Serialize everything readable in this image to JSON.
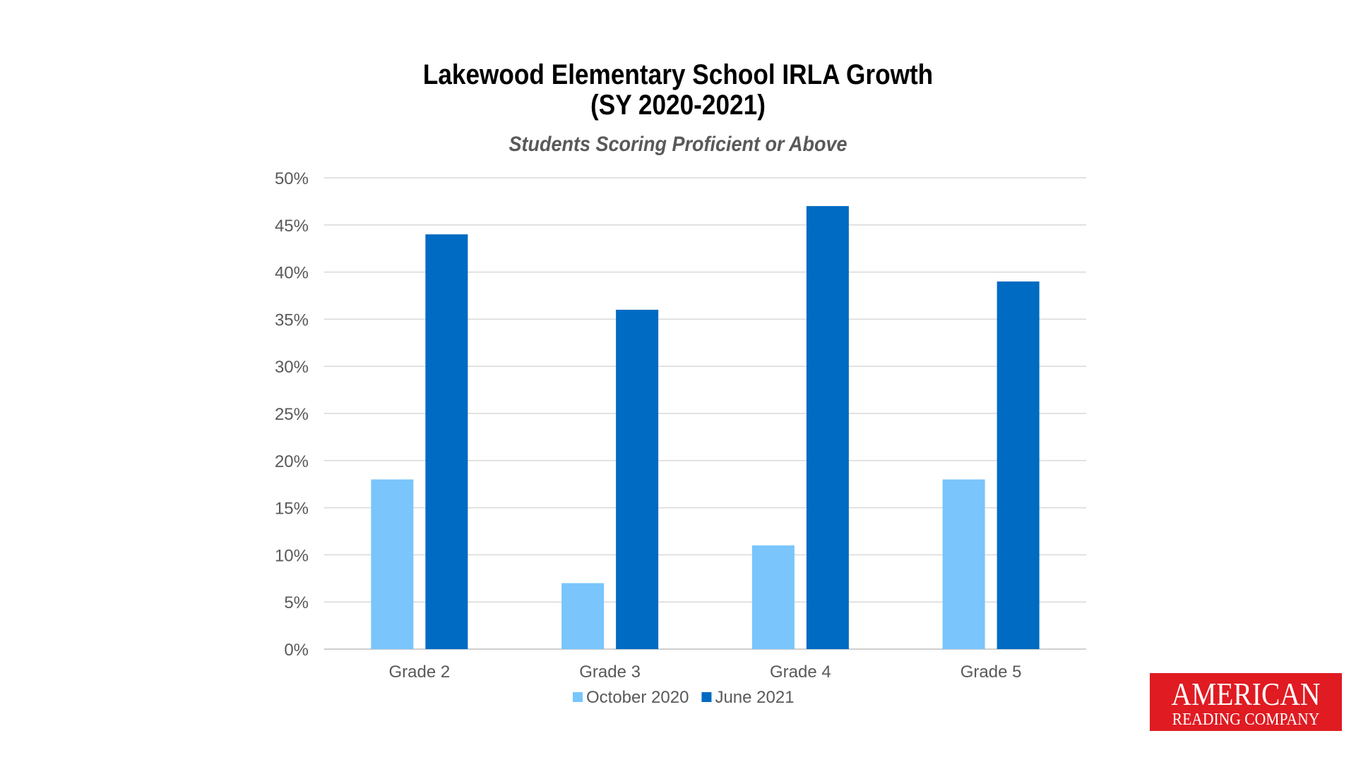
{
  "title_line1": "Lakewood Elementary School IRLA Growth",
  "title_line2": "(SY 2020-2021)",
  "subtitle": "Students Scoring Proficient or Above",
  "logo": {
    "line1": "AMERICAN",
    "line2": "READING COMPANY",
    "color": "#e01b22"
  },
  "chart_data": {
    "type": "bar",
    "title": "Lakewood Elementary School IRLA Growth (SY 2020-2021)",
    "subtitle": "Students Scoring Proficient or Above",
    "categories": [
      "Grade 2",
      "Grade 3",
      "Grade 4",
      "Grade 5"
    ],
    "series": [
      {
        "name": "October 2020",
        "values": [
          18,
          7,
          11,
          18
        ],
        "color": "#79c5fc"
      },
      {
        "name": "June 2021",
        "values": [
          44,
          36,
          47,
          39
        ],
        "color": "#006bc2"
      }
    ],
    "ylim": [
      0,
      50
    ],
    "yticks": [
      0,
      5,
      10,
      15,
      20,
      25,
      30,
      35,
      40,
      45,
      50
    ],
    "ytick_labels": [
      "0%",
      "5%",
      "10%",
      "15%",
      "20%",
      "25%",
      "30%",
      "35%",
      "40%",
      "45%",
      "50%"
    ],
    "xlabel": "",
    "ylabel": "",
    "grid": true,
    "legend": "bottom-center"
  }
}
